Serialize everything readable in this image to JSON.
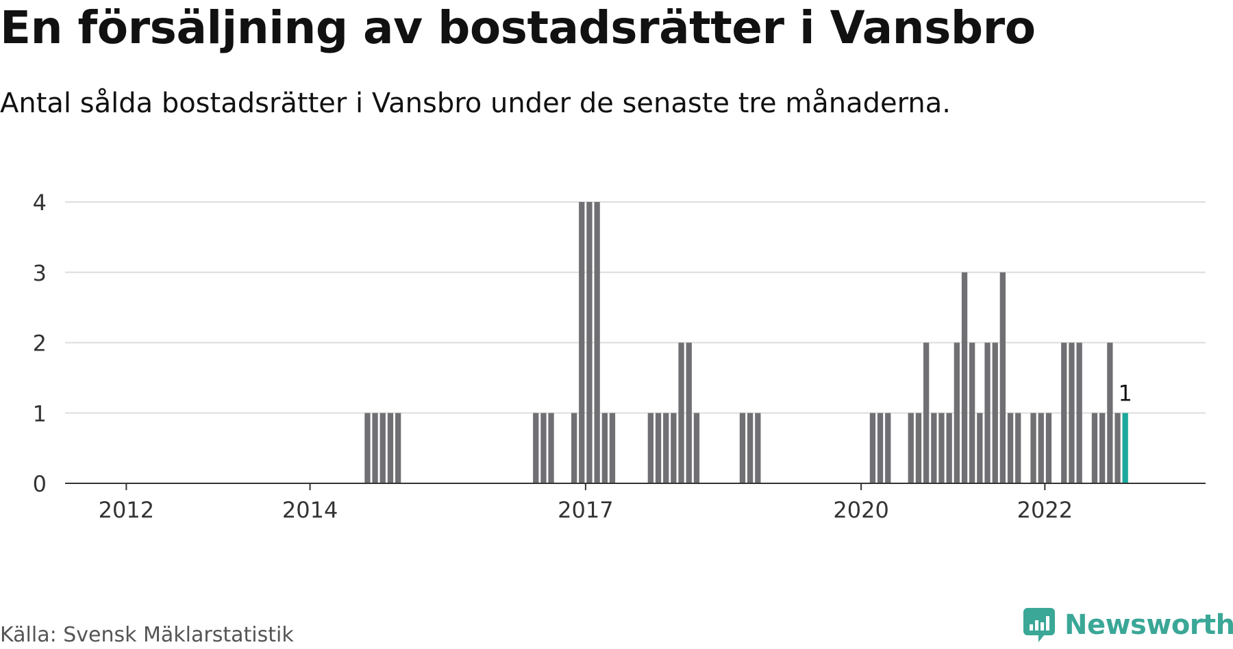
{
  "header": {
    "title": "En försäljning av bostadsrätter i Vansbro",
    "subtitle": "Antal sålda bostadsrätter i Vansbro under de senaste tre månaderna."
  },
  "footer": {
    "source": "Källa: Svensk Mäklarstatistik",
    "brand": "Newsworthy",
    "brand_icon": "bar-chart-speech-icon"
  },
  "colors": {
    "bar": "#707074",
    "highlight": "#1aa99a",
    "grid": "#dddddd",
    "axis": "#333333",
    "brand": "#3aa797"
  },
  "chart_data": {
    "type": "bar",
    "xlabel": "",
    "ylabel": "",
    "ylim": [
      0,
      4
    ],
    "yticks": [
      0,
      1,
      2,
      3,
      4
    ],
    "xlim": [
      "2011-05",
      "2023-10"
    ],
    "xticks": [
      {
        "label": "2012",
        "month": "2012-01"
      },
      {
        "label": "2014",
        "month": "2014-01"
      },
      {
        "label": "2017",
        "month": "2017-01"
      },
      {
        "label": "2020",
        "month": "2020-01"
      },
      {
        "label": "2022",
        "month": "2022-01"
      }
    ],
    "grid": true,
    "highlight_label": "1",
    "months": [
      "2014-08",
      "2014-09",
      "2014-10",
      "2014-11",
      "2014-12",
      "2016-06",
      "2016-07",
      "2016-08",
      "2016-11",
      "2016-12",
      "2017-01",
      "2017-02",
      "2017-03",
      "2017-04",
      "2017-09",
      "2017-10",
      "2017-11",
      "2017-12",
      "2018-01",
      "2018-02",
      "2018-03",
      "2018-09",
      "2018-10",
      "2018-11",
      "2020-02",
      "2020-03",
      "2020-04",
      "2020-07",
      "2020-08",
      "2020-09",
      "2020-10",
      "2020-11",
      "2020-12",
      "2021-01",
      "2021-02",
      "2021-03",
      "2021-04",
      "2021-05",
      "2021-06",
      "2021-07",
      "2021-08",
      "2021-09",
      "2021-11",
      "2021-12",
      "2022-01",
      "2022-03",
      "2022-04",
      "2022-05",
      "2022-07",
      "2022-08",
      "2022-09",
      "2022-10",
      "2022-11"
    ],
    "values": [
      1,
      1,
      1,
      1,
      1,
      1,
      1,
      1,
      1,
      4,
      4,
      4,
      1,
      1,
      1,
      1,
      1,
      1,
      2,
      2,
      1,
      1,
      1,
      1,
      1,
      1,
      1,
      1,
      1,
      2,
      1,
      1,
      1,
      2,
      3,
      2,
      1,
      2,
      2,
      3,
      1,
      1,
      1,
      1,
      1,
      2,
      2,
      2,
      1,
      1,
      2,
      1,
      1
    ],
    "highlight_index": 52
  }
}
